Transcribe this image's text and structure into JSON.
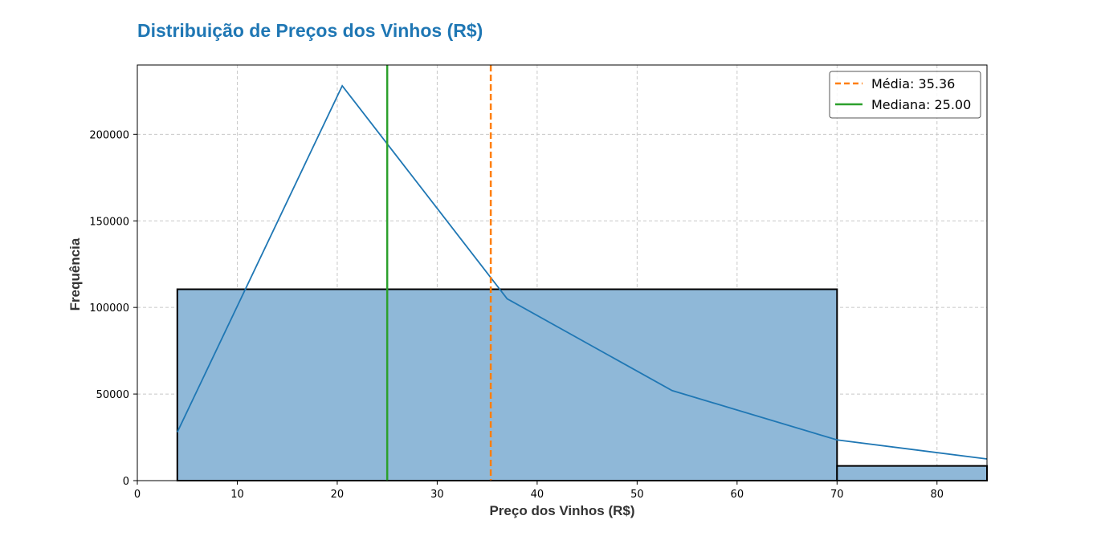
{
  "chart_data": {
    "type": "bar",
    "title": "Distribuição de Preços dos Vinhos (R$)",
    "xlabel": "Preço dos Vinhos (R$)",
    "ylabel": "Frequência",
    "xlim": [
      0,
      85
    ],
    "ylim": [
      0,
      240000
    ],
    "xticks": [
      0,
      10,
      20,
      30,
      40,
      50,
      60,
      70,
      80
    ],
    "yticks": [
      0,
      50000,
      100000,
      150000,
      200000
    ],
    "grid": true,
    "legend_position": "top-right",
    "bins": [
      {
        "x0": 4,
        "x1": 70,
        "count": 110500
      },
      {
        "x0": 70,
        "x1": 85,
        "count": 8500
      }
    ],
    "kde": {
      "x": [
        4,
        20.5,
        37,
        53.5,
        70,
        85
      ],
      "y": [
        28000,
        228000,
        105000,
        52000,
        23500,
        12500
      ]
    },
    "reference_lines": [
      {
        "label": "Média: 35.36",
        "value": 35.36,
        "color": "#ff7f0e",
        "style": "dashed"
      },
      {
        "label": "Mediana: 25.00",
        "value": 25.0,
        "color": "#2ca02c",
        "style": "solid"
      }
    ],
    "colors": {
      "title": "#1f77b4",
      "bar_fill": "#8fb8d8",
      "bar_edge": "#000000",
      "kde": "#1f77b4",
      "grid": "#c8c8c8"
    }
  }
}
